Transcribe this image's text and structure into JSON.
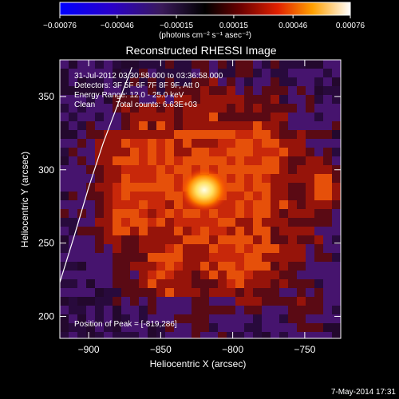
{
  "header": {
    "colorbar_units_label": "(photons cm⁻² s⁻¹ asec⁻²)"
  },
  "plot": {
    "title": "Reconstructed RHESSI Image",
    "xlabel": "Heliocentric X (arcsec)",
    "ylabel": "Heliocentric Y (arcsec)"
  },
  "annotations": {
    "time_range": "31-Jul-2012 03:30:58.000 to 03:36:58.000",
    "detectors": "Detectors: 3F 5F 6F 7F 8F 9F, Att 0",
    "energy_range": "Energy Range: 12.0 - 25.0 keV",
    "method": "Clean",
    "total_counts": "Total counts: 6.63E+03",
    "peak_position": "Position of Peak = [-819,286]"
  },
  "footer": {
    "timestamp": "7-May-2014 17:31"
  },
  "colors": {
    "background": "#000000",
    "text": "#ffffff",
    "limb": "#ffffff"
  },
  "chart_data": {
    "type": "heatmap",
    "title": "Reconstructed RHESSI Image",
    "xlabel": "Heliocentric X (arcsec)",
    "ylabel": "Heliocentric Y (arcsec)",
    "xlim": [
      -920,
      -725
    ],
    "ylim": [
      185,
      375
    ],
    "x_ticks": [
      -900,
      -850,
      -800,
      -750
    ],
    "y_ticks": [
      200,
      250,
      300,
      350
    ],
    "x_tick_labels": [
      "−900",
      "−850",
      "−800",
      "−750"
    ],
    "y_tick_labels": [
      "200",
      "250",
      "300",
      "350"
    ],
    "colorbar": {
      "range": [
        -0.00076,
        0.00076
      ],
      "ticks": [
        -0.00076,
        -0.00046,
        -0.00015,
        0.00015,
        0.00046,
        0.00076
      ],
      "tick_labels": [
        "−0.00076",
        "−0.00046",
        "−0.00015",
        "0.00015",
        "0.00046",
        "0.00076"
      ],
      "units": "(photons cm⁻² s⁻¹ asec⁻²)"
    },
    "peak": {
      "x": -819,
      "y": 286
    },
    "limb_curve": [
      [
        -921,
        220
      ],
      [
        -910,
        255
      ],
      [
        -900,
        288
      ],
      [
        -890,
        318
      ],
      [
        -880,
        344
      ],
      [
        -870,
        370
      ]
    ]
  }
}
